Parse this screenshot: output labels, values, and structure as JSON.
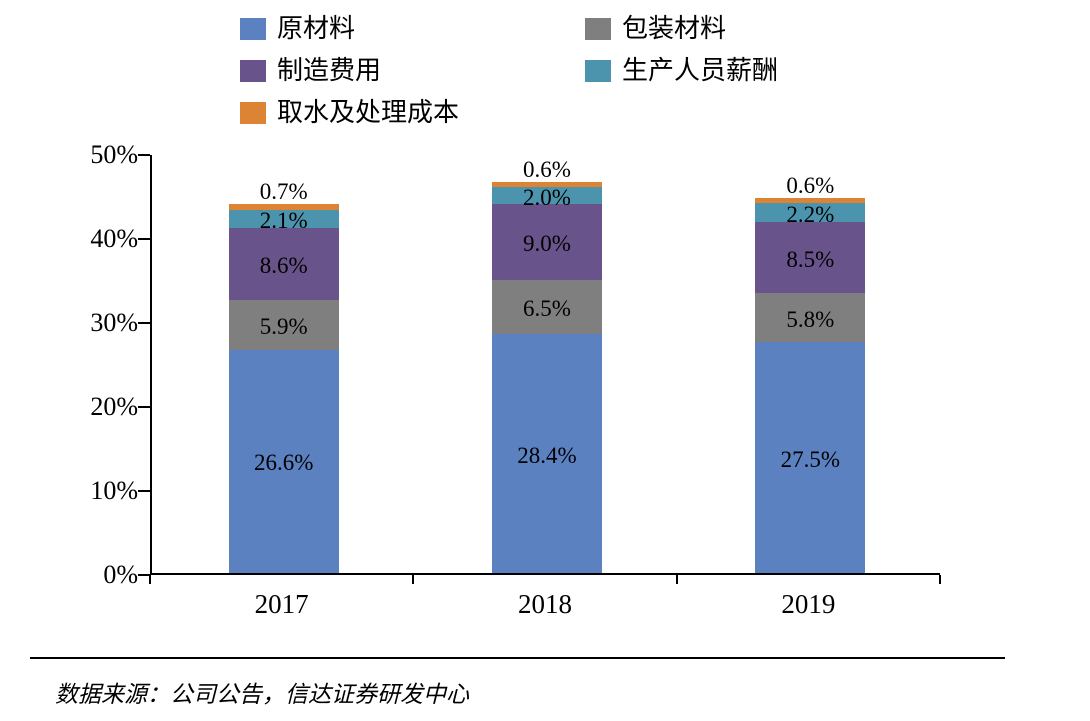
{
  "chart_data": {
    "type": "bar",
    "stacked": true,
    "title": "",
    "xlabel": "",
    "ylabel": "",
    "categories": [
      "2017",
      "2018",
      "2019"
    ],
    "series": [
      {
        "name": "原材料",
        "color": "#5B81C1",
        "values": [
          26.6,
          28.4,
          27.5
        ]
      },
      {
        "name": "包装材料",
        "color": "#7F7F7F",
        "values": [
          5.9,
          6.5,
          5.8
        ]
      },
      {
        "name": "制造费用",
        "color": "#68548A",
        "values": [
          8.6,
          9.0,
          8.5
        ]
      },
      {
        "name": "生产人员薪酬",
        "color": "#4C94AE",
        "values": [
          2.1,
          2.0,
          2.2
        ]
      },
      {
        "name": "取水及处理成本",
        "color": "#DC8434",
        "values": [
          0.7,
          0.6,
          0.6
        ]
      }
    ],
    "value_suffix": "%",
    "ylim": [
      0,
      50
    ],
    "ytick_step": 10,
    "ytick_labels": [
      "0%",
      "10%",
      "20%",
      "30%",
      "40%",
      "50%"
    ],
    "grid": false,
    "legend_position": "top",
    "axis_color": "#000000",
    "label_color": "#000000"
  },
  "source": {
    "label": "数据来源：公司公告，信达证券研发中心"
  }
}
